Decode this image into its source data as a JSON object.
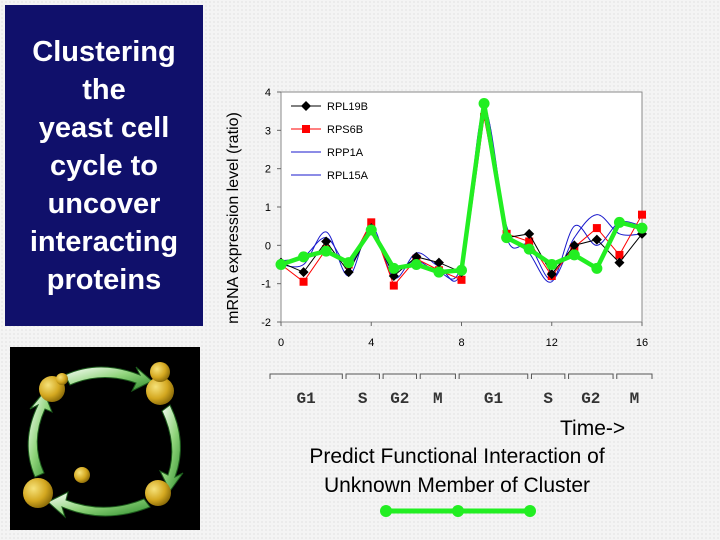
{
  "slide": {
    "title": "Clustering\nthe\nyeast cell\ncycle to\nuncover\ninteracting\nproteins",
    "time_label": "Time->",
    "caption": "Predict Functional Interaction of\nUnknown Member of Cluster",
    "image_description_icon": "cell-cycle-diagram",
    "colors": {
      "title_bg": "#10106b",
      "title_text": "#ffffff",
      "cluster_green": "#22ee22"
    }
  },
  "chart_data": {
    "type": "line",
    "xlabel": "",
    "ylabel": "mRNA expression level (ratio)",
    "xlim": [
      0,
      16
    ],
    "ylim": [
      -2,
      4
    ],
    "xticks": [
      0,
      4,
      8,
      12,
      16
    ],
    "yticks": [
      -2,
      -1,
      0,
      1,
      2,
      3,
      4
    ],
    "legend_position": "top-left",
    "x": [
      0,
      1,
      2,
      3,
      4,
      5,
      6,
      7,
      8,
      9,
      10,
      11,
      12,
      13,
      14,
      15,
      16
    ],
    "series": [
      {
        "name": "RPL19B",
        "color": "#000000",
        "marker": "diamond",
        "values": [
          -0.45,
          -0.7,
          0.1,
          -0.7,
          0.45,
          -0.8,
          -0.3,
          -0.45,
          -0.7,
          3.65,
          0.2,
          0.3,
          -0.75,
          0.0,
          0.15,
          -0.45,
          0.3
        ]
      },
      {
        "name": "RPS6B",
        "color": "#ff0000",
        "marker": "square",
        "values": [
          -0.5,
          -0.95,
          -0.1,
          -0.5,
          0.6,
          -1.05,
          -0.35,
          -0.65,
          -0.9,
          3.35,
          0.3,
          0.1,
          -0.8,
          -0.05,
          0.45,
          -0.25,
          0.8
        ]
      },
      {
        "name": "RPP1A",
        "color": "#1a1acc",
        "marker": "none",
        "values": [
          -0.5,
          -0.5,
          0.35,
          -0.8,
          0.5,
          -0.85,
          -0.2,
          -0.55,
          -0.65,
          3.45,
          0.5,
          -0.2,
          -0.95,
          0.5,
          0.0,
          0.6,
          0.5
        ]
      },
      {
        "name": "RPL15A",
        "color": "#1a1acc",
        "marker": "none",
        "values": [
          -0.4,
          -0.3,
          0.2,
          -0.5,
          0.3,
          -0.6,
          -0.4,
          -0.7,
          -0.5,
          3.55,
          0.2,
          0.0,
          -0.9,
          0.2,
          0.8,
          0.3,
          0.3
        ]
      },
      {
        "name": "",
        "color": "#22ee22",
        "marker": "circle",
        "thick": true,
        "values": [
          -0.5,
          -0.3,
          -0.15,
          -0.45,
          0.4,
          -0.6,
          -0.5,
          -0.7,
          -0.65,
          3.7,
          0.2,
          -0.1,
          -0.5,
          -0.25,
          -0.6,
          0.6,
          0.45
        ]
      }
    ],
    "phases": [
      {
        "label": "G1",
        "from": 0,
        "to": 3.9
      },
      {
        "label": "S",
        "from": 4.1,
        "to": 5.9
      },
      {
        "label": "G2",
        "from": 6.1,
        "to": 7.9
      },
      {
        "label": "M",
        "from": 8.1,
        "to": 10.0
      },
      {
        "label": "G1",
        "from": 10.2,
        "to": 13.9
      },
      {
        "label": "S",
        "from": 14.1,
        "to": 15.9
      },
      {
        "label": "G2",
        "from": 16.1,
        "to": 18.5
      },
      {
        "label": "M",
        "from": 18.7,
        "to": 20.6
      }
    ]
  }
}
